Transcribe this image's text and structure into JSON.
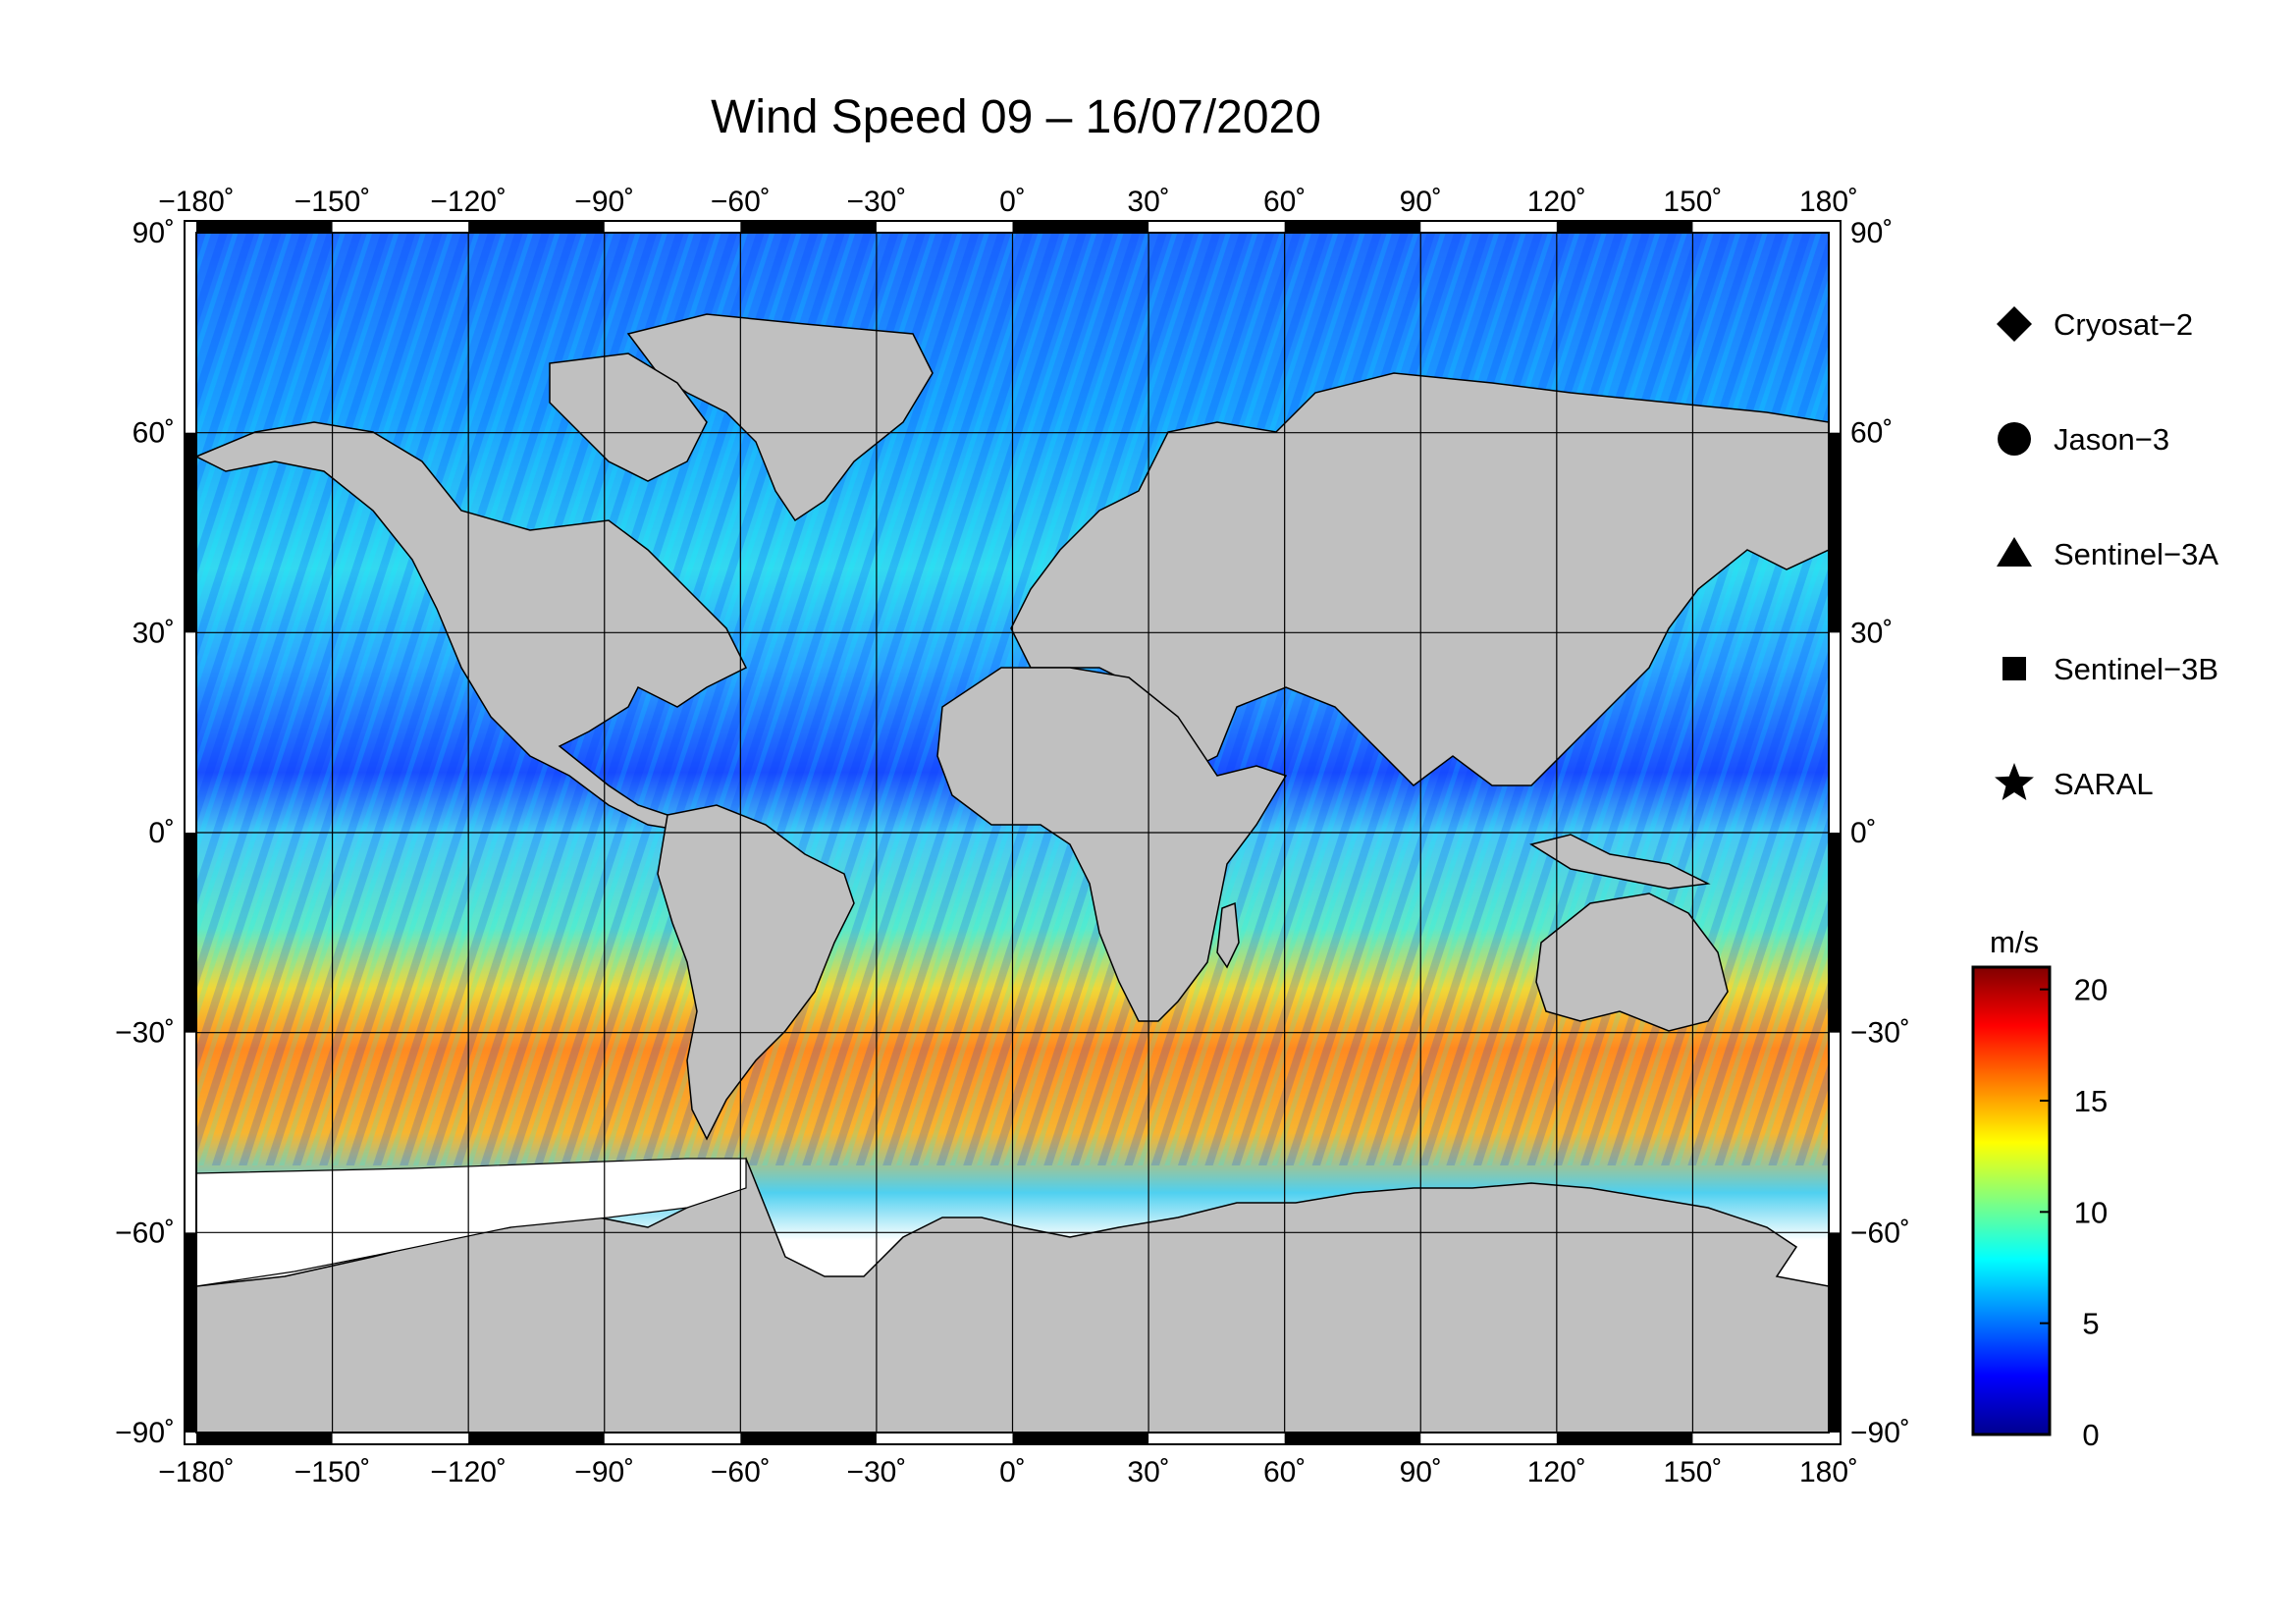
{
  "title": "Wind Speed 09 – 16/07/2020",
  "map": {
    "projection": "equirectangular",
    "lon_range": [
      -180,
      180
    ],
    "lat_range": [
      -90,
      90
    ],
    "land_color": "#c0c0c0",
    "ice_color": "#ffffff",
    "ocean_missing_color": "#ffffff",
    "graticule_lon": [
      -150,
      -120,
      -90,
      -60,
      -30,
      0,
      30,
      60,
      90,
      120,
      150
    ],
    "graticule_lat": [
      -60,
      -30,
      0,
      30,
      60
    ],
    "lon_ticks": [
      {
        "value": -180,
        "label": "−180˚"
      },
      {
        "value": -150,
        "label": "−150˚"
      },
      {
        "value": -120,
        "label": "−120˚"
      },
      {
        "value": -90,
        "label": "−90˚"
      },
      {
        "value": -60,
        "label": "−60˚"
      },
      {
        "value": -30,
        "label": "−30˚"
      },
      {
        "value": 0,
        "label": "0˚"
      },
      {
        "value": 30,
        "label": "30˚"
      },
      {
        "value": 60,
        "label": "60˚"
      },
      {
        "value": 90,
        "label": "90˚"
      },
      {
        "value": 120,
        "label": "120˚"
      },
      {
        "value": 150,
        "label": "150˚"
      },
      {
        "value": 180,
        "label": "180˚"
      }
    ],
    "lat_ticks": [
      {
        "value": 90,
        "label": "90˚"
      },
      {
        "value": 60,
        "label": "60˚"
      },
      {
        "value": 30,
        "label": "30˚"
      },
      {
        "value": 0,
        "label": "0˚"
      },
      {
        "value": -30,
        "label": "−30˚"
      },
      {
        "value": -60,
        "label": "−60˚"
      },
      {
        "value": -90,
        "label": "−90˚"
      }
    ]
  },
  "legend": [
    {
      "name": "Cryosat−2",
      "symbol": "diamond"
    },
    {
      "name": "Jason−3",
      "symbol": "circle"
    },
    {
      "name": "Sentinel−3A",
      "symbol": "triangle"
    },
    {
      "name": "Sentinel−3B",
      "symbol": "square"
    },
    {
      "name": "SARAL",
      "symbol": "star"
    }
  ],
  "colorbar": {
    "unit": "m/s",
    "min": 0,
    "max": 21,
    "ticks": [
      0,
      5,
      10,
      15,
      20
    ],
    "colors": [
      "#00008f",
      "#0000ff",
      "#0080ff",
      "#00ffff",
      "#80ff80",
      "#ffff00",
      "#ff8000",
      "#ff0000",
      "#800000"
    ]
  }
}
